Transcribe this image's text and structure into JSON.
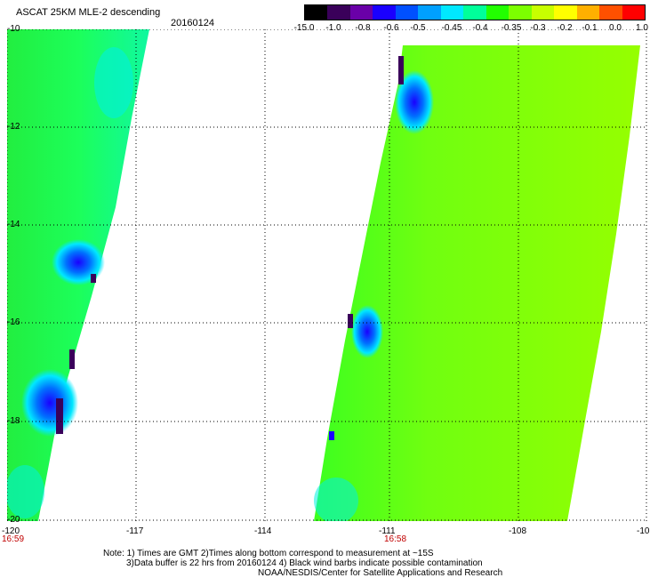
{
  "header": {
    "title": "ASCAT 25KM MLE-2 descending",
    "date": "20160124"
  },
  "colorbar": {
    "labels": [
      "-15.0",
      "-1.0",
      "-0.8",
      "-0.6",
      "-0.5",
      "-0.45",
      "-0.4",
      "-0.35",
      "-0.3",
      "-0.2",
      "-0.1",
      "0.0",
      "1.0"
    ],
    "colors": [
      "#000000",
      "#3a005a",
      "#6a00a8",
      "#1a00ff",
      "#0050ff",
      "#00a0ff",
      "#00e8ff",
      "#00ff9a",
      "#22ff00",
      "#7cff00",
      "#c8ff00",
      "#ffff00",
      "#ffb000",
      "#ff5000",
      "#ff0000"
    ]
  },
  "axes": {
    "y_labels": [
      "-10",
      "-12",
      "-14",
      "-16",
      "-18",
      "-20"
    ],
    "x_labels": [
      "-120",
      "-117",
      "-114",
      "-111",
      "-108",
      "-10"
    ],
    "time_labels": [
      "16:59",
      "16:58"
    ]
  },
  "notes": {
    "line1": "Note: 1) Times are GMT 2)Times along bottom correspond to measurement at ~15S",
    "line2": "3)Data buffer is 22 hrs from 20160124 4) Black wind barbs indicate possible contamination",
    "line3": "NOAA/NESDIS/Center for Satellite Applications and Research"
  }
}
